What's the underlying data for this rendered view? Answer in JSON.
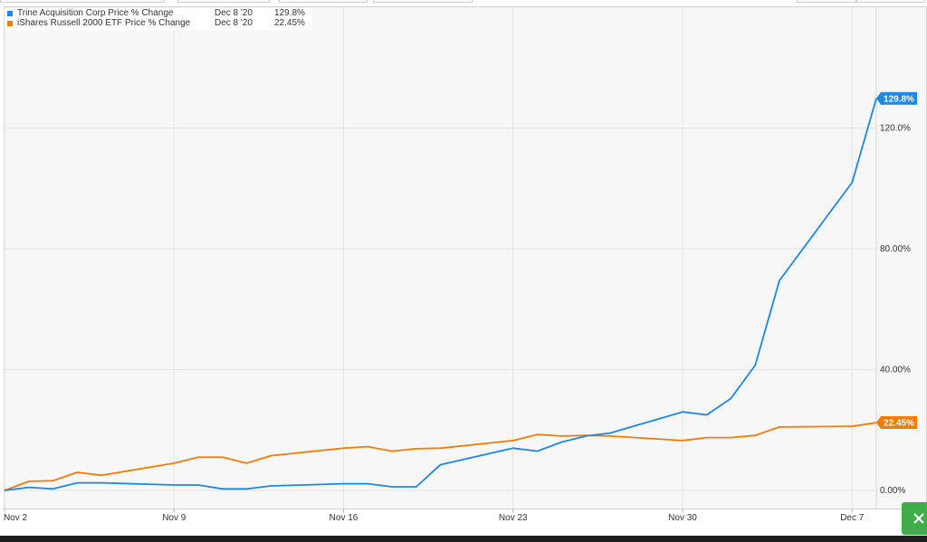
{
  "legend": [
    {
      "name": "Trine Acquisition Corp Price % Change",
      "date": "Dec 8 '20",
      "value": "129.8%",
      "color": "#1e88e5"
    },
    {
      "name": "iShares Russell 2000 ETF Price % Change",
      "date": "Dec 8 '20",
      "value": "22.45%",
      "color": "#f57c00"
    }
  ],
  "chart_data": {
    "type": "line",
    "title": "",
    "xlabel": "",
    "ylabel": "",
    "ylim": [
      -6,
      160
    ],
    "y_ticks": [
      0,
      40,
      80,
      120
    ],
    "y_tick_labels": [
      "0.00%",
      "40.00%",
      "80.00%",
      "120.0%"
    ],
    "x_ticks": [
      0,
      7,
      14,
      21,
      28,
      35
    ],
    "x_tick_labels": [
      "Nov 2",
      "Nov 9",
      "Nov 16",
      "Nov 23",
      "Nov 30",
      "Dec 7"
    ],
    "grid": true,
    "legend_position": "top-left",
    "series": [
      {
        "name": "Trine Acquisition Corp Price % Change",
        "color": "#1e88e5",
        "end_label": "129.8%",
        "x": [
          0,
          1,
          2,
          3,
          4,
          7,
          8,
          9,
          10,
          11,
          14,
          15,
          16,
          17,
          18,
          21,
          22,
          23,
          24,
          25,
          28,
          29,
          30,
          31,
          32,
          35,
          36
        ],
        "y": [
          0,
          1,
          0.5,
          2.5,
          2.5,
          1.8,
          1.8,
          0.5,
          0.5,
          1.5,
          2.2,
          2.2,
          1.2,
          1.2,
          8.5,
          14,
          13,
          16,
          18,
          19,
          26,
          25,
          30.5,
          41.5,
          69.5,
          102,
          129.8
        ]
      },
      {
        "name": "iShares Russell 2000 ETF Price % Change",
        "color": "#f57c00",
        "end_label": "22.45%",
        "x": [
          0,
          1,
          2,
          3,
          4,
          7,
          8,
          9,
          10,
          11,
          14,
          15,
          16,
          17,
          18,
          21,
          22,
          23,
          24,
          25,
          28,
          29,
          30,
          31,
          32,
          35,
          36
        ],
        "y": [
          0,
          3,
          3.2,
          6,
          5,
          9,
          11,
          11,
          9,
          11.5,
          14,
          14.5,
          13,
          13.8,
          14,
          16.5,
          18.5,
          18,
          18.2,
          18,
          16.5,
          17.5,
          17.5,
          18.2,
          21,
          21.2,
          22.45
        ]
      }
    ]
  }
}
